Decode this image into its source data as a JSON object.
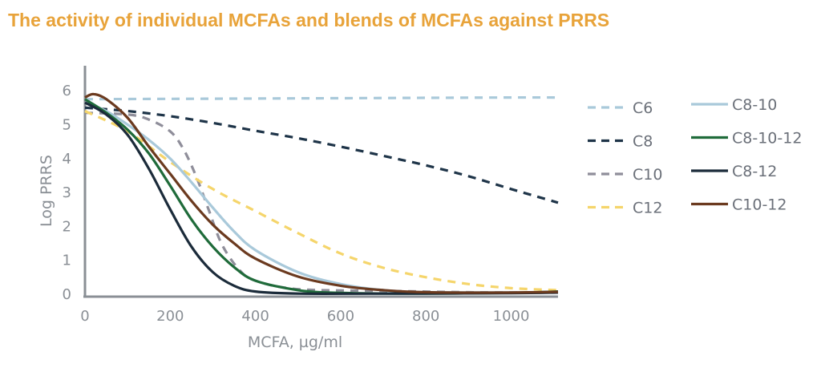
{
  "title": "The activity of individual MCFAs and blends of MCFAs against PRRS",
  "chart_data": {
    "type": "line",
    "title": "The activity of individual MCFAs and blends of MCFAs against PRRS",
    "xlabel": "MCFA, µg/ml",
    "ylabel": "Log PRRS",
    "xlim": [
      0,
      1110
    ],
    "ylim": [
      0,
      6.5
    ],
    "xticks": [
      "0",
      "200",
      "400",
      "600",
      "800",
      "1000"
    ],
    "yticks": [
      "0",
      "1",
      "2",
      "3",
      "4",
      "5",
      "6"
    ],
    "grid": false,
    "legend_position": "right",
    "series": [
      {
        "name": "C6",
        "style": "dashed",
        "color": "#A9C9DA",
        "points": [
          [
            0,
            5.75
          ],
          [
            200,
            5.76
          ],
          [
            400,
            5.77
          ],
          [
            600,
            5.78
          ],
          [
            800,
            5.79
          ],
          [
            1000,
            5.8
          ],
          [
            1110,
            5.8
          ]
        ]
      },
      {
        "name": "C8",
        "style": "dashed",
        "color": "#1E3448",
        "points": [
          [
            0,
            5.5
          ],
          [
            100,
            5.4
          ],
          [
            200,
            5.25
          ],
          [
            300,
            5.05
          ],
          [
            400,
            4.82
          ],
          [
            500,
            4.6
          ],
          [
            600,
            4.35
          ],
          [
            700,
            4.08
          ],
          [
            800,
            3.8
          ],
          [
            900,
            3.48
          ],
          [
            1000,
            3.1
          ],
          [
            1110,
            2.7
          ]
        ]
      },
      {
        "name": "C10",
        "style": "dashed",
        "color": "#8F8E9A",
        "points": [
          [
            0,
            5.35
          ],
          [
            100,
            5.3
          ],
          [
            150,
            5.15
          ],
          [
            200,
            4.8
          ],
          [
            230,
            4.3
          ],
          [
            260,
            3.5
          ],
          [
            290,
            2.5
          ],
          [
            320,
            1.5
          ],
          [
            360,
            0.75
          ],
          [
            400,
            0.4
          ],
          [
            500,
            0.15
          ],
          [
            700,
            0.1
          ],
          [
            900,
            0.06
          ],
          [
            1110,
            0.05
          ]
        ]
      },
      {
        "name": "C12",
        "style": "dashed",
        "color": "#F5D56B",
        "points": [
          [
            0,
            5.4
          ],
          [
            100,
            4.8
          ],
          [
            200,
            3.9
          ],
          [
            300,
            3.1
          ],
          [
            400,
            2.45
          ],
          [
            500,
            1.8
          ],
          [
            600,
            1.2
          ],
          [
            700,
            0.78
          ],
          [
            800,
            0.5
          ],
          [
            900,
            0.3
          ],
          [
            1000,
            0.18
          ],
          [
            1110,
            0.12
          ]
        ]
      },
      {
        "name": "C8-10",
        "style": "solid",
        "color": "#A9C9DA",
        "points": [
          [
            0,
            5.65
          ],
          [
            50,
            5.4
          ],
          [
            100,
            5.0
          ],
          [
            150,
            4.55
          ],
          [
            200,
            4.0
          ],
          [
            250,
            3.3
          ],
          [
            300,
            2.55
          ],
          [
            350,
            1.85
          ],
          [
            400,
            1.3
          ],
          [
            500,
            0.65
          ],
          [
            600,
            0.3
          ],
          [
            700,
            0.12
          ],
          [
            800,
            0.06
          ],
          [
            1000,
            0.05
          ],
          [
            1110,
            0.05
          ]
        ]
      },
      {
        "name": "C8-10-12",
        "style": "solid",
        "color": "#1F6B3A",
        "points": [
          [
            0,
            5.75
          ],
          [
            50,
            5.35
          ],
          [
            100,
            4.85
          ],
          [
            150,
            4.15
          ],
          [
            200,
            3.2
          ],
          [
            250,
            2.2
          ],
          [
            300,
            1.4
          ],
          [
            350,
            0.8
          ],
          [
            400,
            0.4
          ],
          [
            500,
            0.12
          ],
          [
            600,
            0.04
          ],
          [
            800,
            0.02
          ],
          [
            1000,
            0.04
          ],
          [
            1110,
            0.08
          ]
        ]
      },
      {
        "name": "C8-12",
        "style": "solid",
        "color": "#1B2B3A",
        "points": [
          [
            0,
            5.65
          ],
          [
            50,
            5.3
          ],
          [
            100,
            4.7
          ],
          [
            150,
            3.7
          ],
          [
            200,
            2.5
          ],
          [
            250,
            1.4
          ],
          [
            300,
            0.65
          ],
          [
            350,
            0.25
          ],
          [
            400,
            0.08
          ],
          [
            500,
            0.02
          ],
          [
            700,
            0.02
          ],
          [
            1000,
            0.03
          ],
          [
            1110,
            0.05
          ]
        ]
      },
      {
        "name": "C10-12",
        "style": "solid",
        "color": "#6B3A1F",
        "points": [
          [
            0,
            5.8
          ],
          [
            20,
            5.9
          ],
          [
            50,
            5.75
          ],
          [
            100,
            5.2
          ],
          [
            150,
            4.35
          ],
          [
            200,
            3.55
          ],
          [
            250,
            2.75
          ],
          [
            300,
            2.05
          ],
          [
            350,
            1.5
          ],
          [
            400,
            1.05
          ],
          [
            500,
            0.52
          ],
          [
            600,
            0.25
          ],
          [
            700,
            0.12
          ],
          [
            800,
            0.06
          ],
          [
            1000,
            0.05
          ],
          [
            1110,
            0.07
          ]
        ]
      }
    ]
  }
}
